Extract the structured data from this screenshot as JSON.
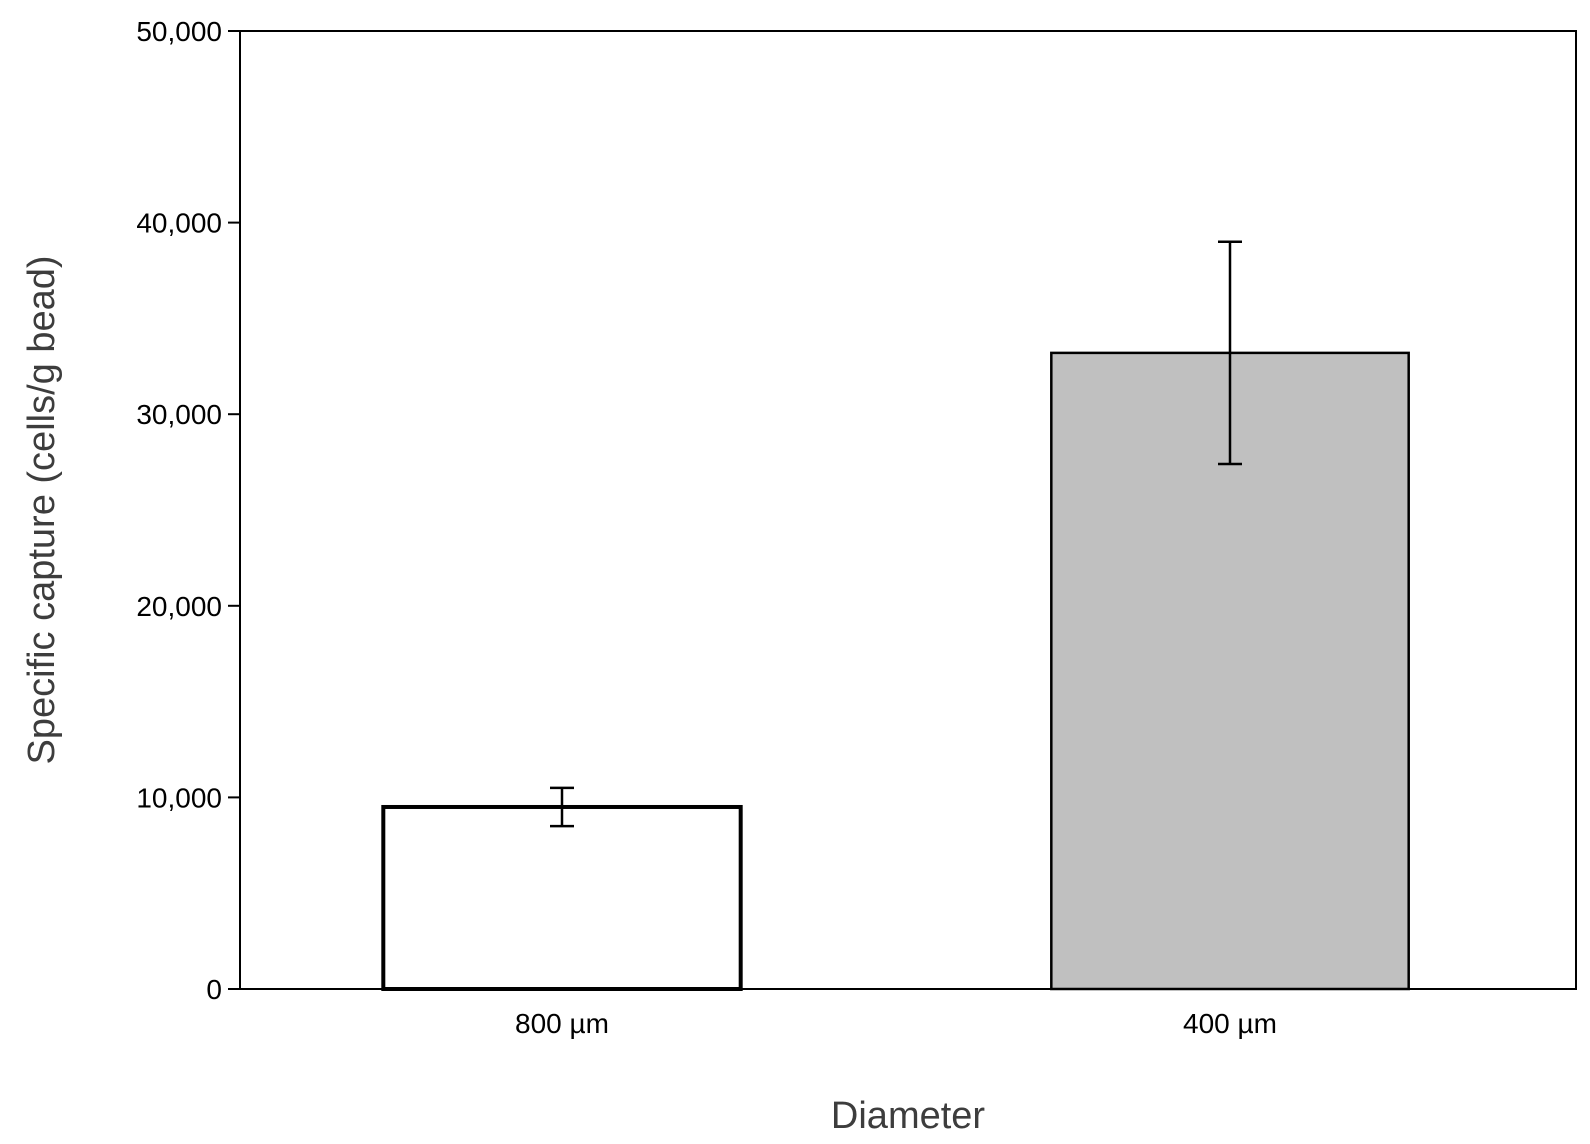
{
  "chart_data": {
    "type": "bar",
    "title": "",
    "xlabel": "Diameter",
    "ylabel": "Specific capture (cells/g bead)",
    "categories": [
      "800 µm",
      "400 µm"
    ],
    "values": [
      9500,
      33200
    ],
    "errors": [
      1000,
      5800
    ],
    "bar_colors": [
      "#ffffff",
      "#c0c0c0"
    ],
    "bar_edge_color": "#000000",
    "ylim": [
      0,
      50000
    ],
    "yticks": [
      0,
      10000,
      20000,
      30000,
      40000,
      50000
    ],
    "ytick_labels": [
      "0",
      "10,000",
      "20,000",
      "30,000",
      "40,000",
      "50,000"
    ],
    "grid": false,
    "legend": "none"
  }
}
